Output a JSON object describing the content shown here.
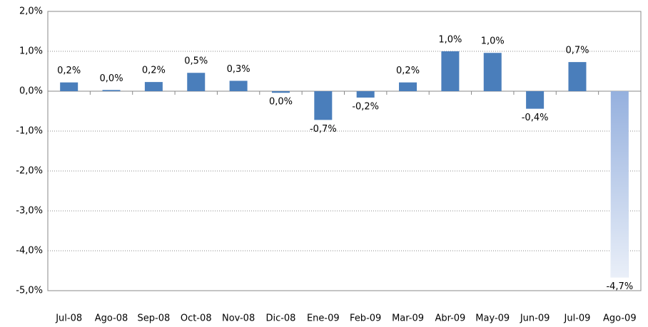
{
  "chart_data": {
    "type": "bar",
    "categories": [
      "Jul-08",
      "Ago-08",
      "Sep-08",
      "Oct-08",
      "Nov-08",
      "Dic-08",
      "Ene-09",
      "Feb-09",
      "Mar-09",
      "Abr-09",
      "May-09",
      "Jun-09",
      "Jul-09",
      "Ago-09"
    ],
    "values": [
      0.22,
      0.03,
      0.23,
      0.46,
      0.26,
      -0.04,
      -0.72,
      -0.16,
      0.22,
      1.0,
      0.96,
      -0.44,
      0.73,
      -4.67
    ],
    "value_labels": [
      "0,2%",
      "0,0%",
      "0,2%",
      "0,5%",
      "0,3%",
      "0,0%",
      "-0,7%",
      "-0,2%",
      "0,2%",
      "1,0%",
      "1,0%",
      "-0,4%",
      "0,7%",
      "-4,7%"
    ],
    "colors": [
      "#4a7ebb",
      "#4a7ebb",
      "#4a7ebb",
      "#4a7ebb",
      "#4a7ebb",
      "#4a7ebb",
      "#4a7ebb",
      "#4a7ebb",
      "#4a7ebb",
      "#4a7ebb",
      "#4a7ebb",
      "#4a7ebb",
      "#4a7ebb",
      "#95b0de"
    ],
    "ylim": [
      -5,
      2
    ],
    "yticks": [
      {
        "value": -5,
        "label": "-5,0%"
      },
      {
        "value": -4,
        "label": "-4,0%"
      },
      {
        "value": -3,
        "label": "-3,0%"
      },
      {
        "value": -2,
        "label": "-2,0%"
      },
      {
        "value": -1,
        "label": "-1,0%"
      },
      {
        "value": 0,
        "label": "0,0%"
      },
      {
        "value": 1,
        "label": "1,0%"
      },
      {
        "value": 2,
        "label": "2,0%"
      }
    ],
    "grid": true
  }
}
